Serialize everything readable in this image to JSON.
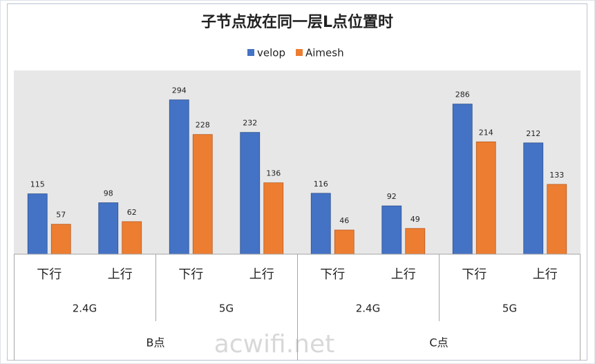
{
  "chart_data": {
    "type": "bar",
    "title": "子节点放在同一层L点位置时",
    "categories": [
      "下行",
      "上行",
      "下行",
      "上行",
      "下行",
      "上行",
      "下行",
      "上行"
    ],
    "category_groups": [
      [
        "2.4G",
        "5G",
        "2.4G",
        "5G"
      ],
      [
        "B点",
        "C点"
      ]
    ],
    "series": [
      {
        "name": "velop",
        "color": "#4472c4",
        "values": [
          115,
          98,
          294,
          232,
          116,
          92,
          286,
          212
        ]
      },
      {
        "name": "Aimesh",
        "color": "#ed7d31",
        "values": [
          57,
          62,
          228,
          136,
          46,
          49,
          214,
          133
        ]
      }
    ],
    "ylim": [
      0,
      350
    ],
    "legend": "top",
    "watermark": "acwifi.net"
  }
}
